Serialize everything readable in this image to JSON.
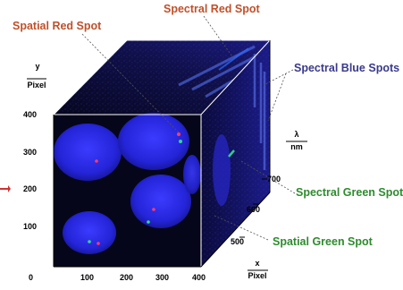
{
  "labels": {
    "spatial_red": "Spatial Red Spot",
    "spectral_red": "Spectral Red Spot",
    "spectral_blue": "Spectral Blue Spots",
    "spectral_green": "Spectral Green Spot",
    "spatial_green": "Spatial Green Spot"
  },
  "axes": {
    "y": {
      "name": "y",
      "unit": "Pixel",
      "ticks": [
        "400",
        "300",
        "200",
        "100"
      ]
    },
    "x": {
      "name": "x",
      "unit": "Pixel",
      "ticks": [
        "0",
        "100",
        "200",
        "300",
        "400"
      ]
    },
    "lambda": {
      "name": "λ",
      "unit": "nm",
      "ticks": [
        "700",
        "600",
        "500"
      ]
    }
  },
  "colors": {
    "red_label": "#c0502a",
    "blue_label": "#3a3a8c",
    "green_label": "#2e8b2e",
    "cube_background": "#06061a",
    "cell_blue": "#2a2ae0"
  }
}
